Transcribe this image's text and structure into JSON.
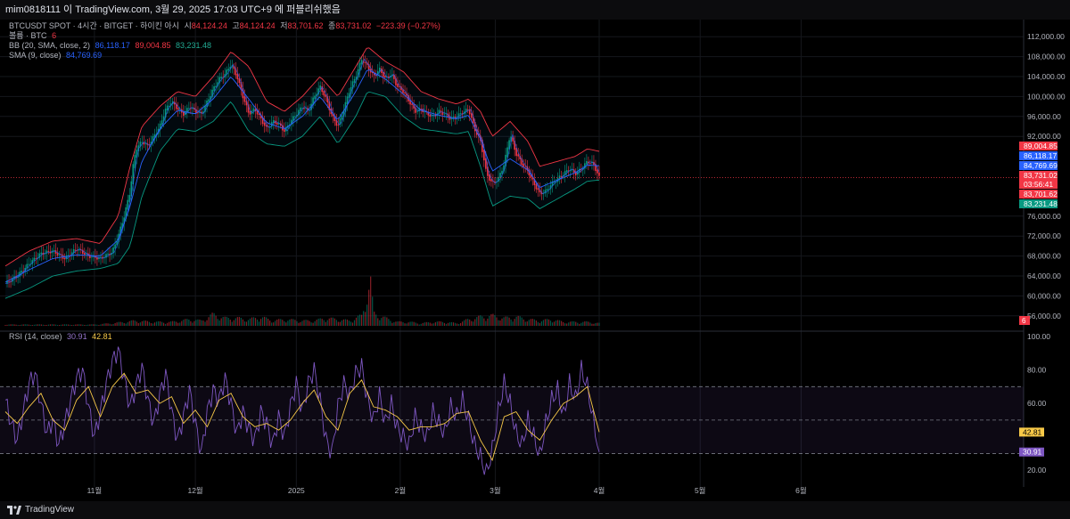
{
  "header": {
    "attribution": "mim0818111 이 TradingView.com, 3월 29, 2025 17:03 UTC+9 에 퍼블리쉬했음"
  },
  "legend": {
    "symbol": "BTCUSDT SPOT · 4시간 · BITGET · 하이킨 아시",
    "open_label": "시",
    "open": "84,124.24",
    "high_label": "고",
    "high": "84,124.24",
    "low_label": "저",
    "low": "83,701.62",
    "close_label": "종",
    "close": "83,731.02",
    "change": "−223.39 (−0.27%)",
    "volume_label": "볼륨 · BTC",
    "volume_value": "6",
    "bb_label": "BB (20, SMA, close, 2)",
    "bb_basis": "86,118.17",
    "bb_upper": "89,004.85",
    "bb_lower": "83,231.48",
    "sma_label": "SMA (9, close)",
    "sma_value": "84,769.69",
    "rsi_label": "RSI (14, close)",
    "rsi_value": "30.91",
    "rsi_ma_value": "42.81"
  },
  "price_axis": {
    "ticks": [
      {
        "value": 112000,
        "label": "112,000.00"
      },
      {
        "value": 108000,
        "label": "108,000.00"
      },
      {
        "value": 104000,
        "label": "104,000.00"
      },
      {
        "value": 100000,
        "label": "100,000.00"
      },
      {
        "value": 96000,
        "label": "96,000.00"
      },
      {
        "value": 92000,
        "label": "92,000.00"
      },
      {
        "value": 76000,
        "label": "76,000.00"
      },
      {
        "value": 72000,
        "label": "72,000.00"
      },
      {
        "value": 68000,
        "label": "68,000.00"
      },
      {
        "value": 64000,
        "label": "64,000.00"
      },
      {
        "value": 60000,
        "label": "60,000.00"
      },
      {
        "value": 56000,
        "label": "56,000.00"
      }
    ],
    "badges": [
      {
        "value": 89004.85,
        "label": "89,004.85",
        "color": "#f23645"
      },
      {
        "value": 86118.17,
        "label": "86,118.17",
        "color": "#2962ff"
      },
      {
        "value": 84769.69,
        "label": "84,769.69",
        "color": "#2962ff"
      },
      {
        "value": 83731.02,
        "label": "83,731.02",
        "color": "#f23645"
      },
      {
        "value": 83701.62,
        "label": "83,701.62",
        "color": "#f23645"
      },
      {
        "value": 83231.48,
        "label": "83,231.48",
        "color": "#089981"
      }
    ],
    "countdown": "03:56:41",
    "volume_badge": "6"
  },
  "rsi_axis": {
    "ticks": [
      {
        "value": 100,
        "label": "100.00"
      },
      {
        "value": 80,
        "label": "80.00"
      },
      {
        "value": 60,
        "label": "60.00"
      },
      {
        "value": 20,
        "label": "20.00"
      }
    ],
    "badges": [
      {
        "value": 42.81,
        "label": "42.81",
        "color": "#f7c948"
      },
      {
        "value": 30.91,
        "label": "30.91",
        "color": "#7e57c2"
      }
    ],
    "overbought": 70,
    "oversold": 30,
    "middle": 50
  },
  "time_axis": {
    "labels": [
      {
        "label": "11월",
        "t": 0.15
      },
      {
        "label": "12월",
        "t": 0.32
      },
      {
        "label": "2025",
        "t": 0.49
      },
      {
        "label": "2월",
        "t": 0.665
      },
      {
        "label": "3월",
        "t": 0.825
      },
      {
        "label": "4월",
        "t": 1.0
      },
      {
        "label": "5월",
        "t": 1.17
      },
      {
        "label": "6월",
        "t": 1.34
      }
    ]
  },
  "footer": {
    "brand": "TradingView"
  },
  "chart_data": {
    "type": "line",
    "title": "BTCUSDT SPOT · 4시간 · BITGET · 하이킨 아시",
    "price_ylim": [
      54000,
      114000
    ],
    "price_path": [
      [
        0.0,
        62500
      ],
      [
        0.02,
        64000
      ],
      [
        0.04,
        66500
      ],
      [
        0.06,
        68500
      ],
      [
        0.08,
        69000
      ],
      [
        0.1,
        67500
      ],
      [
        0.12,
        69500
      ],
      [
        0.14,
        68000
      ],
      [
        0.16,
        67500
      ],
      [
        0.18,
        68800
      ],
      [
        0.19,
        72000
      ],
      [
        0.2,
        76000
      ],
      [
        0.21,
        81000
      ],
      [
        0.215,
        86000
      ],
      [
        0.22,
        89500
      ],
      [
        0.23,
        91000
      ],
      [
        0.24,
        90000
      ],
      [
        0.25,
        92000
      ],
      [
        0.26,
        94000
      ],
      [
        0.27,
        97500
      ],
      [
        0.28,
        99000
      ],
      [
        0.29,
        97500
      ],
      [
        0.3,
        96500
      ],
      [
        0.31,
        98000
      ],
      [
        0.32,
        97000
      ],
      [
        0.33,
        96500
      ],
      [
        0.34,
        99000
      ],
      [
        0.35,
        101500
      ],
      [
        0.36,
        103500
      ],
      [
        0.37,
        104500
      ],
      [
        0.38,
        106500
      ],
      [
        0.39,
        104000
      ],
      [
        0.4,
        100000
      ],
      [
        0.41,
        96500
      ],
      [
        0.42,
        97500
      ],
      [
        0.43,
        95500
      ],
      [
        0.44,
        93500
      ],
      [
        0.45,
        95000
      ],
      [
        0.46,
        94500
      ],
      [
        0.47,
        93000
      ],
      [
        0.48,
        95000
      ],
      [
        0.49,
        96500
      ],
      [
        0.5,
        98000
      ],
      [
        0.51,
        97000
      ],
      [
        0.52,
        100000
      ],
      [
        0.53,
        102000
      ],
      [
        0.54,
        99500
      ],
      [
        0.55,
        96000
      ],
      [
        0.56,
        94000
      ],
      [
        0.57,
        97500
      ],
      [
        0.58,
        101500
      ],
      [
        0.59,
        104000
      ],
      [
        0.6,
        107500
      ],
      [
        0.61,
        106000
      ],
      [
        0.62,
        104000
      ],
      [
        0.63,
        105500
      ],
      [
        0.64,
        103500
      ],
      [
        0.65,
        104500
      ],
      [
        0.66,
        102000
      ],
      [
        0.67,
        101000
      ],
      [
        0.68,
        99000
      ],
      [
        0.69,
        97000
      ],
      [
        0.7,
        97500
      ],
      [
        0.71,
        96500
      ],
      [
        0.72,
        96000
      ],
      [
        0.73,
        97000
      ],
      [
        0.74,
        96500
      ],
      [
        0.75,
        95500
      ],
      [
        0.76,
        96000
      ],
      [
        0.77,
        96800
      ],
      [
        0.78,
        97500
      ],
      [
        0.785,
        95500
      ],
      [
        0.79,
        93500
      ],
      [
        0.8,
        91000
      ],
      [
        0.805,
        88000
      ],
      [
        0.81,
        84500
      ],
      [
        0.82,
        82500
      ],
      [
        0.83,
        83500
      ],
      [
        0.84,
        86500
      ],
      [
        0.85,
        92500
      ],
      [
        0.86,
        88500
      ],
      [
        0.87,
        86500
      ],
      [
        0.88,
        85000
      ],
      [
        0.89,
        82500
      ],
      [
        0.9,
        80500
      ],
      [
        0.91,
        81000
      ],
      [
        0.92,
        82500
      ],
      [
        0.93,
        83500
      ],
      [
        0.94,
        84500
      ],
      [
        0.95,
        85500
      ],
      [
        0.96,
        84500
      ],
      [
        0.97,
        85500
      ],
      [
        0.98,
        87000
      ],
      [
        0.99,
        86500
      ],
      [
        1.0,
        83731
      ]
    ],
    "bb_upper_path": [
      [
        0.0,
        66000
      ],
      [
        0.04,
        69000
      ],
      [
        0.08,
        71000
      ],
      [
        0.12,
        71500
      ],
      [
        0.16,
        70500
      ],
      [
        0.19,
        76000
      ],
      [
        0.21,
        86000
      ],
      [
        0.23,
        94000
      ],
      [
        0.26,
        98000
      ],
      [
        0.29,
        101000
      ],
      [
        0.32,
        100000
      ],
      [
        0.35,
        104000
      ],
      [
        0.38,
        109000
      ],
      [
        0.41,
        106000
      ],
      [
        0.44,
        99000
      ],
      [
        0.47,
        97000
      ],
      [
        0.5,
        100000
      ],
      [
        0.53,
        104000
      ],
      [
        0.56,
        100000
      ],
      [
        0.59,
        106000
      ],
      [
        0.61,
        110000
      ],
      [
        0.64,
        107000
      ],
      [
        0.67,
        105000
      ],
      [
        0.7,
        101000
      ],
      [
        0.73,
        99500
      ],
      [
        0.76,
        98500
      ],
      [
        0.78,
        99500
      ],
      [
        0.8,
        97000
      ],
      [
        0.82,
        92000
      ],
      [
        0.85,
        95000
      ],
      [
        0.88,
        91000
      ],
      [
        0.9,
        86000
      ],
      [
        0.93,
        87000
      ],
      [
        0.96,
        88000
      ],
      [
        0.98,
        89500
      ],
      [
        1.0,
        89005
      ]
    ],
    "bb_lower_path": [
      [
        0.0,
        59500
      ],
      [
        0.04,
        61500
      ],
      [
        0.08,
        64000
      ],
      [
        0.12,
        65000
      ],
      [
        0.16,
        65500
      ],
      [
        0.19,
        66500
      ],
      [
        0.21,
        70000
      ],
      [
        0.23,
        80000
      ],
      [
        0.26,
        89000
      ],
      [
        0.29,
        93500
      ],
      [
        0.32,
        93000
      ],
      [
        0.35,
        95000
      ],
      [
        0.38,
        99000
      ],
      [
        0.41,
        93000
      ],
      [
        0.44,
        90500
      ],
      [
        0.47,
        90000
      ],
      [
        0.5,
        92000
      ],
      [
        0.53,
        96000
      ],
      [
        0.56,
        90500
      ],
      [
        0.59,
        96000
      ],
      [
        0.61,
        101000
      ],
      [
        0.64,
        100000
      ],
      [
        0.67,
        96000
      ],
      [
        0.7,
        93500
      ],
      [
        0.73,
        93000
      ],
      [
        0.76,
        92500
      ],
      [
        0.78,
        93000
      ],
      [
        0.8,
        86000
      ],
      [
        0.82,
        78000
      ],
      [
        0.85,
        80000
      ],
      [
        0.88,
        79500
      ],
      [
        0.9,
        77500
      ],
      [
        0.93,
        79500
      ],
      [
        0.96,
        81500
      ],
      [
        0.98,
        83000
      ],
      [
        1.0,
        83231
      ]
    ],
    "current_price": 83731.02,
    "volume": [
      [
        0.0,
        1
      ],
      [
        0.05,
        1
      ],
      [
        0.1,
        1
      ],
      [
        0.15,
        1
      ],
      [
        0.18,
        2
      ],
      [
        0.2,
        3
      ],
      [
        0.22,
        4
      ],
      [
        0.25,
        3
      ],
      [
        0.28,
        3
      ],
      [
        0.31,
        5
      ],
      [
        0.33,
        4
      ],
      [
        0.35,
        9
      ],
      [
        0.37,
        6
      ],
      [
        0.39,
        6
      ],
      [
        0.41,
        5
      ],
      [
        0.43,
        7
      ],
      [
        0.45,
        4
      ],
      [
        0.47,
        5
      ],
      [
        0.5,
        4
      ],
      [
        0.52,
        4
      ],
      [
        0.54,
        6
      ],
      [
        0.56,
        5
      ],
      [
        0.58,
        4
      ],
      [
        0.6,
        8
      ],
      [
        0.615,
        35
      ],
      [
        0.62,
        10
      ],
      [
        0.64,
        6
      ],
      [
        0.66,
        3
      ],
      [
        0.68,
        3
      ],
      [
        0.7,
        2
      ],
      [
        0.72,
        3
      ],
      [
        0.74,
        3
      ],
      [
        0.76,
        2
      ],
      [
        0.78,
        5
      ],
      [
        0.8,
        7
      ],
      [
        0.82,
        8
      ],
      [
        0.84,
        6
      ],
      [
        0.86,
        7
      ],
      [
        0.88,
        5
      ],
      [
        0.9,
        4
      ],
      [
        0.92,
        5
      ],
      [
        0.94,
        3
      ],
      [
        0.96,
        3
      ],
      [
        0.98,
        3
      ],
      [
        1.0,
        2
      ]
    ],
    "rsi_ylim": [
      10,
      100
    ],
    "rsi": [
      [
        0.0,
        62
      ],
      [
        0.01,
        48
      ],
      [
        0.02,
        38
      ],
      [
        0.03,
        55
      ],
      [
        0.04,
        72
      ],
      [
        0.05,
        78
      ],
      [
        0.06,
        60
      ],
      [
        0.07,
        42
      ],
      [
        0.08,
        50
      ],
      [
        0.09,
        35
      ],
      [
        0.1,
        48
      ],
      [
        0.11,
        62
      ],
      [
        0.12,
        75
      ],
      [
        0.13,
        80
      ],
      [
        0.14,
        58
      ],
      [
        0.15,
        40
      ],
      [
        0.16,
        55
      ],
      [
        0.17,
        72
      ],
      [
        0.18,
        85
      ],
      [
        0.19,
        92
      ],
      [
        0.2,
        75
      ],
      [
        0.21,
        58
      ],
      [
        0.22,
        70
      ],
      [
        0.23,
        82
      ],
      [
        0.24,
        62
      ],
      [
        0.25,
        48
      ],
      [
        0.26,
        65
      ],
      [
        0.27,
        78
      ],
      [
        0.28,
        55
      ],
      [
        0.29,
        38
      ],
      [
        0.3,
        52
      ],
      [
        0.31,
        68
      ],
      [
        0.32,
        48
      ],
      [
        0.33,
        30
      ],
      [
        0.34,
        55
      ],
      [
        0.35,
        68
      ],
      [
        0.36,
        62
      ],
      [
        0.37,
        75
      ],
      [
        0.38,
        60
      ],
      [
        0.39,
        42
      ],
      [
        0.4,
        55
      ],
      [
        0.41,
        45
      ],
      [
        0.42,
        38
      ],
      [
        0.43,
        55
      ],
      [
        0.44,
        48
      ],
      [
        0.45,
        35
      ],
      [
        0.46,
        52
      ],
      [
        0.47,
        40
      ],
      [
        0.48,
        58
      ],
      [
        0.49,
        72
      ],
      [
        0.5,
        55
      ],
      [
        0.51,
        72
      ],
      [
        0.52,
        80
      ],
      [
        0.53,
        62
      ],
      [
        0.54,
        38
      ],
      [
        0.55,
        30
      ],
      [
        0.56,
        58
      ],
      [
        0.57,
        72
      ],
      [
        0.58,
        65
      ],
      [
        0.59,
        78
      ],
      [
        0.6,
        82
      ],
      [
        0.61,
        62
      ],
      [
        0.62,
        50
      ],
      [
        0.63,
        65
      ],
      [
        0.64,
        48
      ],
      [
        0.65,
        60
      ],
      [
        0.66,
        45
      ],
      [
        0.67,
        40
      ],
      [
        0.68,
        35
      ],
      [
        0.69,
        52
      ],
      [
        0.7,
        45
      ],
      [
        0.71,
        40
      ],
      [
        0.72,
        55
      ],
      [
        0.73,
        48
      ],
      [
        0.74,
        42
      ],
      [
        0.75,
        58
      ],
      [
        0.76,
        52
      ],
      [
        0.77,
        62
      ],
      [
        0.78,
        50
      ],
      [
        0.79,
        35
      ],
      [
        0.8,
        28
      ],
      [
        0.81,
        18
      ],
      [
        0.82,
        32
      ],
      [
        0.83,
        55
      ],
      [
        0.84,
        72
      ],
      [
        0.85,
        60
      ],
      [
        0.86,
        42
      ],
      [
        0.87,
        35
      ],
      [
        0.88,
        50
      ],
      [
        0.89,
        40
      ],
      [
        0.9,
        28
      ],
      [
        0.91,
        48
      ],
      [
        0.92,
        62
      ],
      [
        0.93,
        68
      ],
      [
        0.94,
        52
      ],
      [
        0.95,
        72
      ],
      [
        0.96,
        62
      ],
      [
        0.97,
        80
      ],
      [
        0.98,
        70
      ],
      [
        0.99,
        50
      ],
      [
        1.0,
        30.91
      ]
    ],
    "rsi_ma": [
      [
        0.0,
        55
      ],
      [
        0.02,
        48
      ],
      [
        0.04,
        58
      ],
      [
        0.06,
        66
      ],
      [
        0.08,
        50
      ],
      [
        0.1,
        44
      ],
      [
        0.12,
        62
      ],
      [
        0.14,
        70
      ],
      [
        0.16,
        52
      ],
      [
        0.18,
        70
      ],
      [
        0.2,
        78
      ],
      [
        0.22,
        66
      ],
      [
        0.24,
        68
      ],
      [
        0.26,
        60
      ],
      [
        0.28,
        64
      ],
      [
        0.3,
        48
      ],
      [
        0.32,
        56
      ],
      [
        0.34,
        46
      ],
      [
        0.36,
        62
      ],
      [
        0.38,
        66
      ],
      [
        0.4,
        52
      ],
      [
        0.42,
        46
      ],
      [
        0.44,
        48
      ],
      [
        0.46,
        44
      ],
      [
        0.48,
        50
      ],
      [
        0.5,
        60
      ],
      [
        0.52,
        68
      ],
      [
        0.54,
        52
      ],
      [
        0.56,
        44
      ],
      [
        0.58,
        66
      ],
      [
        0.6,
        74
      ],
      [
        0.62,
        58
      ],
      [
        0.64,
        56
      ],
      [
        0.66,
        52
      ],
      [
        0.68,
        44
      ],
      [
        0.7,
        46
      ],
      [
        0.72,
        46
      ],
      [
        0.74,
        48
      ],
      [
        0.76,
        54
      ],
      [
        0.78,
        55
      ],
      [
        0.8,
        38
      ],
      [
        0.82,
        26
      ],
      [
        0.84,
        52
      ],
      [
        0.86,
        55
      ],
      [
        0.88,
        44
      ],
      [
        0.9,
        38
      ],
      [
        0.92,
        50
      ],
      [
        0.94,
        60
      ],
      [
        0.96,
        64
      ],
      [
        0.98,
        70
      ],
      [
        1.0,
        42.81
      ]
    ]
  }
}
